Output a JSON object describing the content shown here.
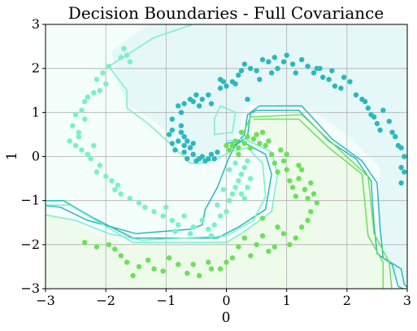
{
  "chart_data": {
    "type": "scatter",
    "title": "Decision Boundaries - Full Covariance",
    "xlabel": "0",
    "ylabel": "1",
    "xlim": [
      -3,
      3
    ],
    "ylim": [
      -3,
      3
    ],
    "xticks": [
      -3,
      -2,
      -1,
      0,
      1,
      2,
      3
    ],
    "yticks": [
      -3,
      -2,
      -1,
      0,
      1,
      2,
      3
    ],
    "grid": true,
    "series": [
      {
        "color": "#2ab8be",
        "region_color": "#e6f7f8",
        "points": [
          [
            -0.75,
            0.55
          ],
          [
            -0.7,
            0.45
          ],
          [
            -0.8,
            0.35
          ],
          [
            -0.9,
            0.3
          ],
          [
            -0.6,
            0.2
          ],
          [
            -0.85,
            0.15
          ],
          [
            -0.7,
            0.1
          ],
          [
            -0.55,
            0.05
          ],
          [
            -0.65,
            -0.05
          ],
          [
            -0.4,
            0.0
          ],
          [
            -0.5,
            -0.1
          ],
          [
            -0.35,
            -0.1
          ],
          [
            -0.3,
            -0.05
          ],
          [
            -0.25,
            0.05
          ],
          [
            -0.15,
            0.1
          ],
          [
            -0.95,
            0.5
          ],
          [
            -0.9,
            0.6
          ],
          [
            -0.75,
            0.7
          ],
          [
            -0.7,
            0.25
          ],
          [
            -0.65,
            0.35
          ],
          [
            -0.55,
            0.3
          ],
          [
            -0.45,
            -0.05
          ],
          [
            -0.2,
            -0.05
          ],
          [
            -0.75,
            1.0
          ],
          [
            -0.7,
            1.2
          ],
          [
            -0.8,
            1.15
          ],
          [
            -0.55,
            1.25
          ],
          [
            -0.45,
            1.15
          ],
          [
            -0.6,
            1.3
          ],
          [
            -0.5,
            1.4
          ],
          [
            -0.4,
            1.3
          ],
          [
            -0.3,
            1.4
          ],
          [
            -0.25,
            1.2
          ],
          [
            -0.1,
            1.55
          ],
          [
            -0.05,
            1.7
          ],
          [
            0.0,
            1.6
          ],
          [
            0.1,
            1.7
          ],
          [
            -0.1,
            1.75
          ],
          [
            0.2,
            1.85
          ],
          [
            0.15,
            1.65
          ],
          [
            0.25,
            1.95
          ],
          [
            0.3,
            2.1
          ],
          [
            0.4,
            2.0
          ],
          [
            0.5,
            1.95
          ],
          [
            0.55,
            1.75
          ],
          [
            0.6,
            2.2
          ],
          [
            0.7,
            2.15
          ],
          [
            0.75,
            1.9
          ],
          [
            0.8,
            2.25
          ],
          [
            0.85,
            2.0
          ],
          [
            0.95,
            2.15
          ],
          [
            1.0,
            2.3
          ],
          [
            1.1,
            2.1
          ],
          [
            1.15,
            1.9
          ],
          [
            1.25,
            2.2
          ],
          [
            1.35,
            2.05
          ],
          [
            1.45,
            1.9
          ],
          [
            1.55,
            2.0
          ],
          [
            1.6,
            1.8
          ],
          [
            1.7,
            1.75
          ],
          [
            1.75,
            1.95
          ],
          [
            1.8,
            1.6
          ],
          [
            1.9,
            1.55
          ],
          [
            1.95,
            1.8
          ],
          [
            2.05,
            1.7
          ],
          [
            2.15,
            1.4
          ],
          [
            2.25,
            1.3
          ],
          [
            2.3,
            1.25
          ],
          [
            2.35,
            1.1
          ],
          [
            2.4,
            0.95
          ],
          [
            2.45,
            0.9
          ],
          [
            2.5,
            0.75
          ],
          [
            2.55,
            0.6
          ],
          [
            2.6,
            1.05
          ],
          [
            2.7,
            0.8
          ],
          [
            2.75,
            0.55
          ],
          [
            2.8,
            0.45
          ],
          [
            2.85,
            0.25
          ],
          [
            2.9,
            0.2
          ],
          [
            2.95,
            0.0
          ],
          [
            2.9,
            -0.25
          ],
          [
            2.95,
            -0.35
          ],
          [
            2.9,
            -0.6
          ],
          [
            0.35,
            1.3
          ],
          [
            1.5,
            2.0
          ],
          [
            -0.9,
            0.85
          ]
        ]
      },
      {
        "color": "#6ce058",
        "region_color": "#eefbea",
        "points": [
          [
            0.05,
            0.15
          ],
          [
            0.1,
            0.25
          ],
          [
            0.15,
            0.35
          ],
          [
            0.2,
            0.2
          ],
          [
            0.3,
            0.3
          ],
          [
            0.35,
            0.45
          ],
          [
            0.4,
            0.2
          ],
          [
            0.45,
            0.4
          ],
          [
            0.5,
            0.5
          ],
          [
            0.55,
            0.3
          ],
          [
            0.6,
            0.55
          ],
          [
            0.65,
            0.25
          ],
          [
            0.7,
            0.35
          ],
          [
            0.0,
            0.25
          ],
          [
            0.2,
            0.05
          ],
          [
            0.75,
            0.05
          ],
          [
            0.8,
            -0.15
          ],
          [
            0.85,
            -0.35
          ],
          [
            0.9,
            0.15
          ],
          [
            1.0,
            -0.3
          ],
          [
            1.0,
            0.05
          ],
          [
            1.05,
            -0.55
          ],
          [
            1.1,
            -0.7
          ],
          [
            1.15,
            -0.9
          ],
          [
            1.2,
            -0.5
          ],
          [
            1.25,
            -0.3
          ],
          [
            1.3,
            -0.75
          ],
          [
            1.35,
            -0.95
          ],
          [
            1.4,
            -0.6
          ],
          [
            1.45,
            -0.85
          ],
          [
            1.5,
            -1.05
          ],
          [
            1.4,
            -1.25
          ],
          [
            1.35,
            -1.45
          ],
          [
            1.25,
            -1.6
          ],
          [
            1.15,
            -1.85
          ],
          [
            1.05,
            -2.0
          ],
          [
            0.95,
            -1.75
          ],
          [
            0.85,
            -1.6
          ],
          [
            0.8,
            -2.05
          ],
          [
            0.7,
            -2.15
          ],
          [
            0.6,
            -1.8
          ],
          [
            0.5,
            -2.0
          ],
          [
            0.4,
            -2.25
          ],
          [
            0.3,
            -1.85
          ],
          [
            0.2,
            -2.05
          ],
          [
            0.1,
            -2.3
          ],
          [
            0.0,
            -2.4
          ],
          [
            -0.1,
            -2.55
          ],
          [
            -0.3,
            -2.4
          ],
          [
            -0.45,
            -2.7
          ],
          [
            -0.55,
            -2.45
          ],
          [
            -0.65,
            -2.65
          ],
          [
            -0.8,
            -2.45
          ],
          [
            -0.95,
            -2.3
          ],
          [
            -1.05,
            -2.6
          ],
          [
            -1.2,
            -2.55
          ],
          [
            -1.3,
            -2.35
          ],
          [
            -1.45,
            -2.5
          ],
          [
            -1.55,
            -2.7
          ],
          [
            -1.65,
            -2.4
          ],
          [
            -1.75,
            -2.25
          ],
          [
            -1.85,
            -2.1
          ],
          [
            -1.95,
            -2.0
          ],
          [
            -2.15,
            -2.05
          ],
          [
            -2.35,
            -1.95
          ],
          [
            0.95,
            -0.1
          ],
          [
            1.2,
            -0.2
          ],
          [
            0.6,
            -1.4
          ],
          [
            0.25,
            0.55
          ],
          [
            -0.25,
            -2.55
          ]
        ]
      },
      {
        "color": "#78f0ca",
        "region_color": "#f4fefa",
        "points": [
          [
            -1.75,
            2.25
          ],
          [
            -1.7,
            2.45
          ],
          [
            -1.65,
            2.3
          ],
          [
            -1.6,
            2.15
          ],
          [
            -1.95,
            2.05
          ],
          [
            -2.05,
            1.9
          ],
          [
            -2.15,
            1.75
          ],
          [
            -2.1,
            1.5
          ],
          [
            -2.2,
            1.45
          ],
          [
            -2.3,
            1.35
          ],
          [
            -2.35,
            1.25
          ],
          [
            -2.4,
            1.05
          ],
          [
            -2.5,
            0.95
          ],
          [
            -2.55,
            0.7
          ],
          [
            -2.45,
            0.45
          ],
          [
            -2.6,
            0.35
          ],
          [
            -2.5,
            0.25
          ],
          [
            -2.4,
            0.15
          ],
          [
            -2.3,
            0.05
          ],
          [
            -2.2,
            0.25
          ],
          [
            -2.25,
            -0.05
          ],
          [
            -2.1,
            -0.2
          ],
          [
            -2.15,
            -0.35
          ],
          [
            -2.0,
            -0.45
          ],
          [
            -1.9,
            -0.55
          ],
          [
            -1.85,
            -0.75
          ],
          [
            -1.75,
            -0.85
          ],
          [
            -1.6,
            -0.95
          ],
          [
            -1.45,
            -1.05
          ],
          [
            -1.35,
            -1.15
          ],
          [
            -1.2,
            -1.25
          ],
          [
            -1.05,
            -1.35
          ],
          [
            -0.9,
            -1.45
          ],
          [
            -0.8,
            -1.55
          ],
          [
            -0.7,
            -1.35
          ],
          [
            -0.55,
            -1.6
          ],
          [
            -0.4,
            -1.45
          ],
          [
            -0.3,
            -1.65
          ],
          [
            -0.2,
            -1.55
          ],
          [
            -0.1,
            -1.35
          ],
          [
            0.0,
            -1.25
          ],
          [
            0.05,
            -1.0
          ],
          [
            0.1,
            -0.85
          ],
          [
            0.15,
            -0.7
          ],
          [
            0.2,
            -0.55
          ],
          [
            0.25,
            -0.4
          ],
          [
            0.3,
            -0.25
          ],
          [
            0.35,
            -0.1
          ],
          [
            0.05,
            -0.3
          ],
          [
            0.15,
            -0.15
          ],
          [
            -0.05,
            -0.75
          ],
          [
            0.3,
            -0.95
          ],
          [
            0.35,
            -0.7
          ],
          [
            0.25,
            -0.85
          ],
          [
            0.4,
            -0.5
          ],
          [
            -1.0,
            -1.15
          ],
          [
            -0.6,
            -1.75
          ],
          [
            -0.25,
            -1.8
          ],
          [
            -2.35,
            0.85
          ],
          [
            -2.45,
            0.55
          ],
          [
            -1.8,
            -0.65
          ],
          [
            -0.85,
            -1.7
          ],
          [
            -2.0,
            1.65
          ],
          [
            -0.15,
            -1.1
          ]
        ]
      }
    ]
  }
}
